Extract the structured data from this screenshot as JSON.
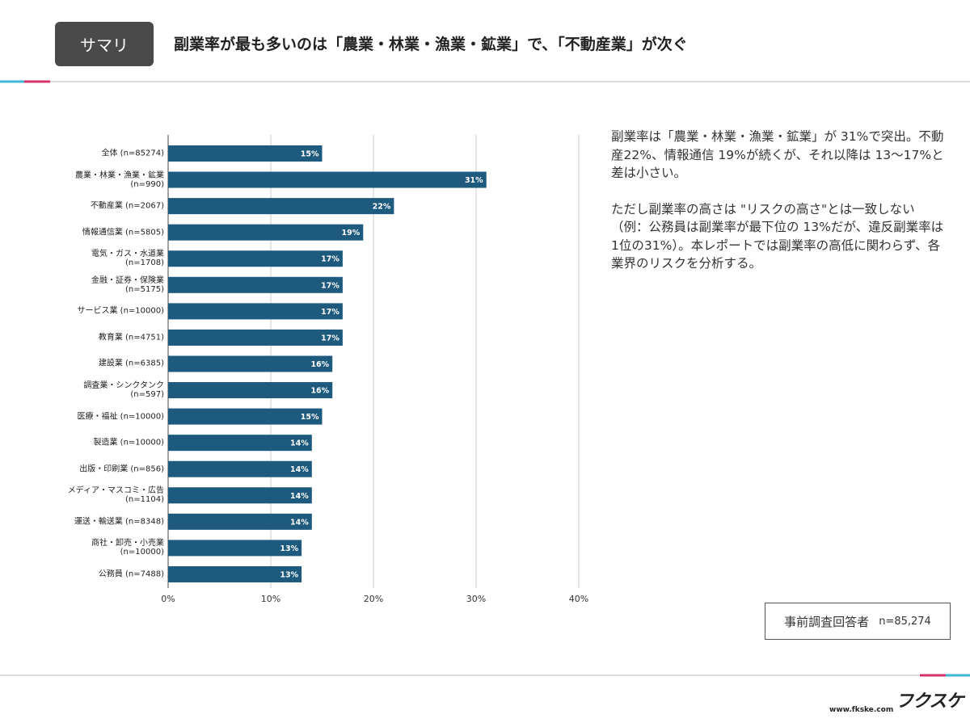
{
  "header": {
    "badge": "サマリ",
    "title": "副業率が最も多いのは「農業・林業・漁業・鉱業」で、「不動産業」が次ぐ"
  },
  "chart_data": {
    "type": "hbar",
    "color": "#1d5a7e",
    "categories": [
      "全体 (n=85274)",
      "農業・林業・漁業・鉱業\n(n=990)",
      "不動産業 (n=2067)",
      "情報通信業 (n=5805)",
      "電気・ガス・水道業\n(n=1708)",
      "金融・証券・保険業\n(n=5175)",
      "サービス業 (n=10000)",
      "教育業 (n=4751)",
      "建設業 (n=6385)",
      "調査業・シンクタンク\n(n=597)",
      "医療・福祉 (n=10000)",
      "製造業 (n=10000)",
      "出版・印刷業 (n=856)",
      "メディア・マスコミ・広告\n(n=1104)",
      "運送・輸送業 (n=8348)",
      "商社・卸売・小売業\n(n=10000)",
      "公務員 (n=7488)"
    ],
    "values": [
      15,
      31,
      22,
      19,
      17,
      17,
      17,
      17,
      16,
      16,
      15,
      14,
      14,
      14,
      14,
      13,
      13
    ],
    "value_labels": [
      "15%",
      "31%",
      "22%",
      "19%",
      "17%",
      "17%",
      "17%",
      "17%",
      "16%",
      "16%",
      "15%",
      "14%",
      "14%",
      "14%",
      "14%",
      "13%",
      "13%"
    ],
    "xlim": [
      0,
      40
    ],
    "xticks": [
      {
        "value": 0,
        "label": "0%"
      },
      {
        "value": 10,
        "label": "10%"
      },
      {
        "value": 20,
        "label": "20%"
      },
      {
        "value": 30,
        "label": "30%"
      },
      {
        "value": 40,
        "label": "40%"
      }
    ],
    "grid": true
  },
  "notes": [
    "副業率は「農業・林業・漁業・鉱業」が 31%で突出。不動産22%、情報通信 19%が続くが、それ以降は 13〜17%と差は小さい。",
    "ただし副業率の高さは \"リスクの高さ\"とは一致しない（例：公務員は副業率が最下位の 13%だが、違反副業率は1位の31%）。本レポートでは副業率の高低に関わらず、各業界のリスクを分析する。"
  ],
  "respondents": {
    "label": "事前調査回答者",
    "n": "n=85,274"
  },
  "footer": {
    "logo": "フクスケ",
    "url": "www.fkske.com"
  }
}
